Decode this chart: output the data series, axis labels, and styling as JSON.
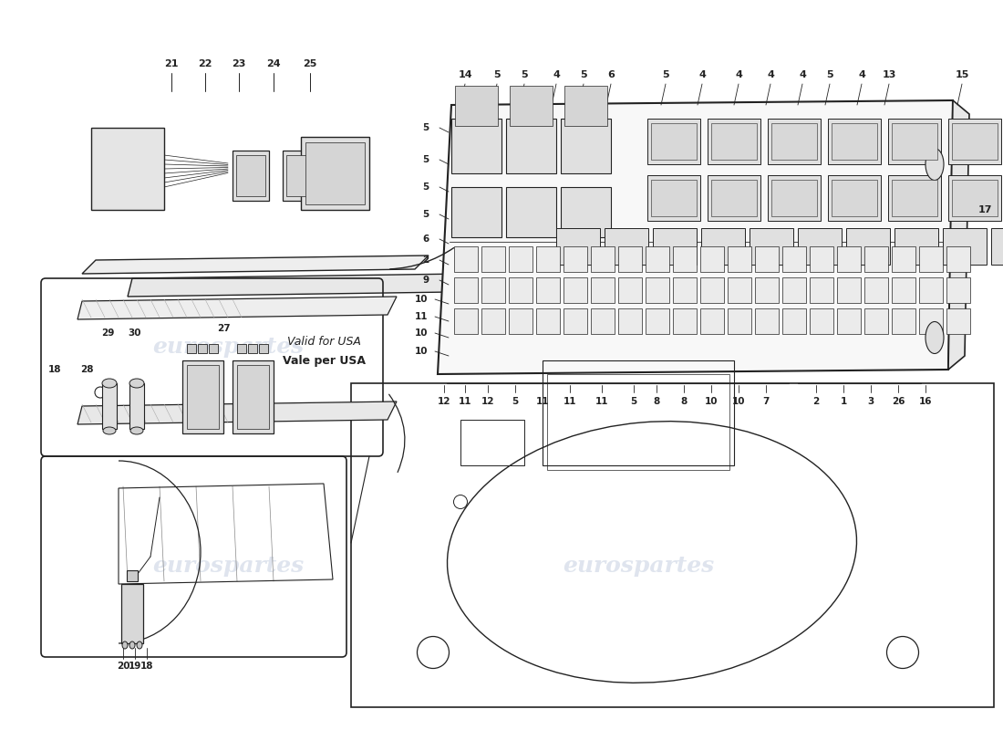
{
  "bg_color": "#ffffff",
  "line_color": "#222222",
  "fig_width": 11.0,
  "fig_height": 8.0,
  "top_labels": [
    "14",
    "5",
    "5",
    "4",
    "5",
    "6",
    "5",
    "4",
    "4",
    "4",
    "4",
    "5",
    "4",
    "13",
    "15"
  ],
  "left_labels": [
    "5",
    "5",
    "5",
    "5",
    "6",
    "2",
    "9",
    "10",
    "11",
    "10",
    "10"
  ],
  "bottom_labels": [
    "12",
    "11",
    "12",
    "5",
    "11",
    "11",
    "11",
    "5",
    "8",
    "8",
    "10",
    "10",
    "7",
    "2",
    "1",
    "3",
    "26",
    "16"
  ],
  "watermark1": "eurospartes",
  "watermark2": "eurospartes",
  "label_21_25": [
    "21",
    "22",
    "23",
    "24",
    "25"
  ],
  "label_29_30": [
    "29",
    "30"
  ],
  "label_27": "27",
  "label_18_28": [
    "18",
    "28"
  ],
  "label_20_19_18": [
    "20",
    "19",
    "18"
  ],
  "label_17": "17",
  "vale_text": "Vale per USA",
  "valid_text": "Valid for USA"
}
